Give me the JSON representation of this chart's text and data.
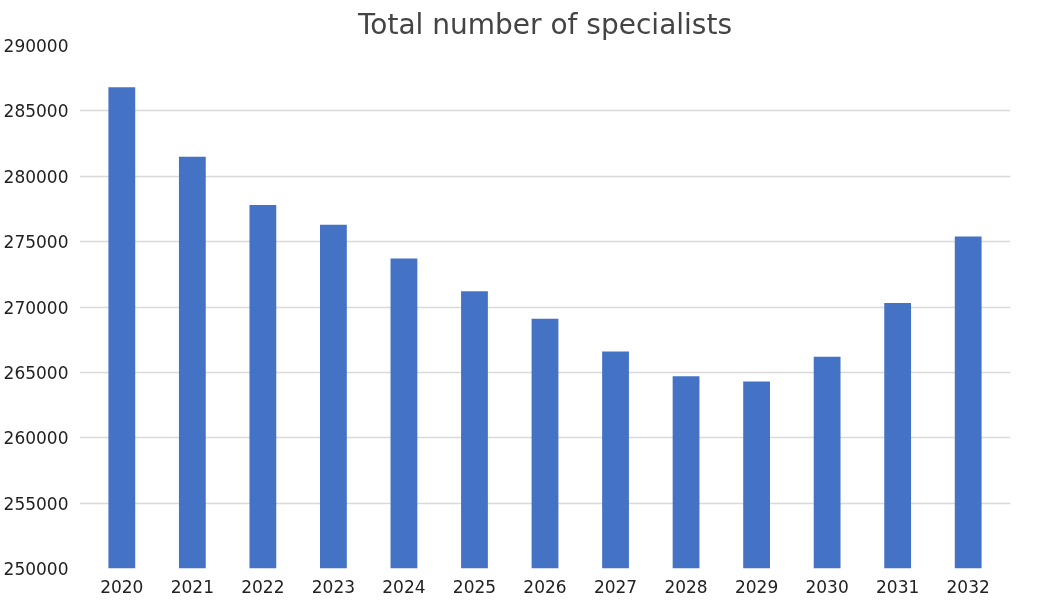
{
  "chart_data": {
    "type": "bar",
    "title": "Total number of specialists",
    "categories": [
      "2020",
      "2021",
      "2022",
      "2023",
      "2024",
      "2025",
      "2026",
      "2027",
      "2028",
      "2029",
      "2030",
      "2031",
      "2032"
    ],
    "values": [
      286800,
      281500,
      277800,
      276300,
      273700,
      271200,
      269100,
      266600,
      264700,
      264300,
      266200,
      270300,
      275400
    ],
    "color": "#4472c4",
    "ylim": [
      250000,
      290000
    ],
    "yticks": [
      250000,
      255000,
      260000,
      265000,
      270000,
      275000,
      280000,
      285000,
      290000
    ],
    "grid": "y"
  }
}
